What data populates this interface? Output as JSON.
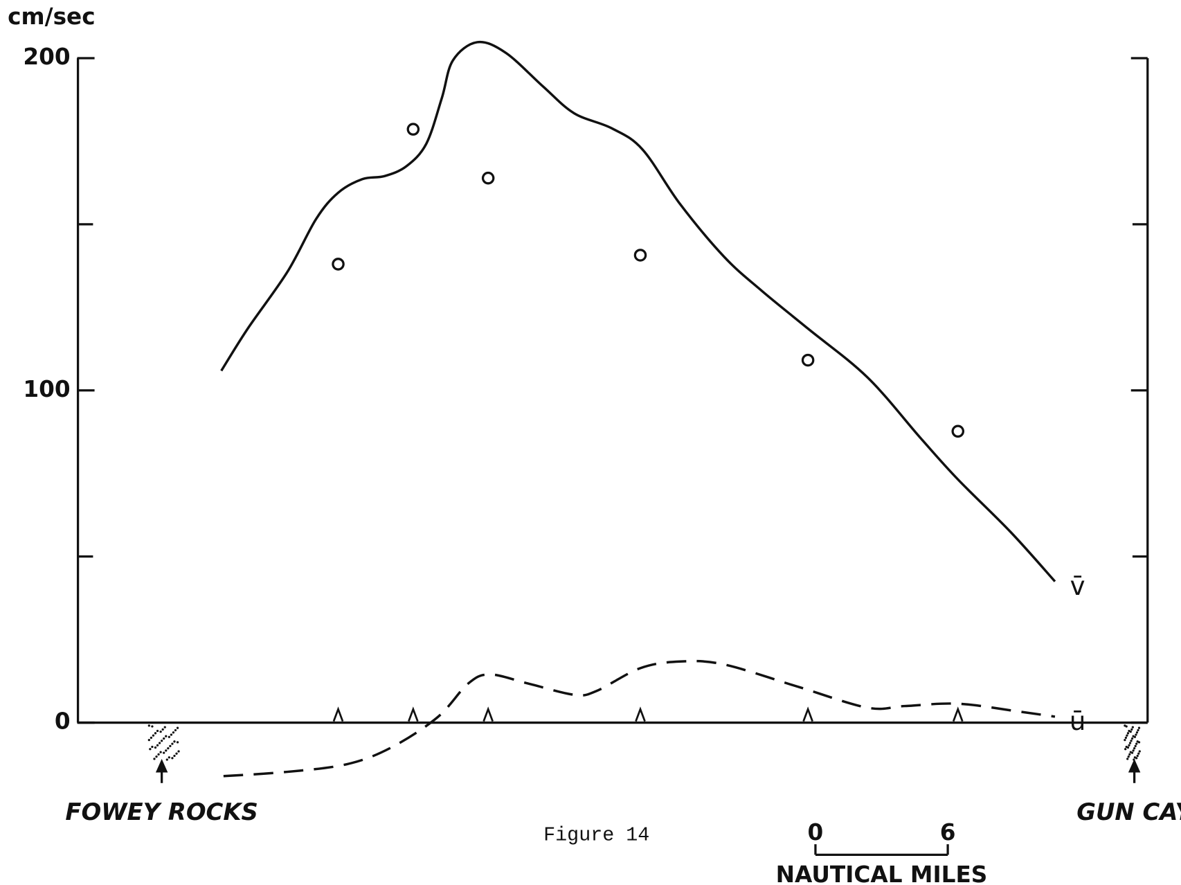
{
  "chart_data": {
    "type": "line",
    "y_label": "cm/sec",
    "caption": "Figure 14",
    "xlim": [
      -3.8,
      44.7
    ],
    "ylim": [
      0,
      200
    ],
    "yticks": [
      0,
      100,
      200
    ],
    "yticks_minor": [
      50,
      150
    ],
    "series": [
      {
        "name": "v̄",
        "style": "solid",
        "color": "#111111",
        "x": [
          2.7,
          3.9,
          5.7,
          7.0,
          8.0,
          9.1,
          10.1,
          11.1,
          12.0,
          12.7,
          13.2,
          14.3,
          15.6,
          17.3,
          18.7,
          20.4,
          21.8,
          23.5,
          25.5,
          27.2,
          29.3,
          32.0,
          34.4,
          36.1,
          38.5,
          40.5
        ],
        "values": [
          105.9,
          118.6,
          135.7,
          151.6,
          159.5,
          163.6,
          164.5,
          167.5,
          174.3,
          188,
          199.3,
          204.8,
          201.6,
          191.4,
          183.4,
          178.9,
          172.5,
          156.1,
          140.2,
          130,
          118.6,
          103.9,
          85.7,
          73.2,
          57.3,
          42.5
        ]
      },
      {
        "name": "ū",
        "style": "dashed",
        "color": "#111111",
        "x": [
          2.8,
          5.7,
          8.4,
          10.4,
          12.5,
          13.9,
          14.9,
          16.6,
          18.7,
          19.7,
          21.7,
          23.5,
          25.5,
          28.9,
          32.0,
          33.7,
          36.1,
          38.8,
          40.5
        ],
        "values": [
          -16.1,
          -14.8,
          -12.5,
          -7.5,
          1.6,
          11.8,
          14.5,
          11.8,
          8.4,
          9.5,
          16.4,
          18.4,
          17.5,
          10.7,
          4.5,
          5.0,
          5.7,
          3.4,
          1.8
        ]
      }
    ],
    "observations": [
      {
        "marker": "circle",
        "x": [
          8.0,
          11.4,
          14.8,
          21.7,
          29.3,
          36.1
        ],
        "values": [
          138,
          178.6,
          163.9,
          140.7,
          109.1,
          87.7
        ]
      },
      {
        "marker": "triangle",
        "x": [
          8.0,
          11.4,
          14.8,
          21.7,
          29.3,
          36.1
        ],
        "values": [
          2,
          2,
          2,
          2,
          2,
          2
        ]
      }
    ],
    "locations": [
      {
        "name": "FOWEY ROCKS",
        "x": 0
      },
      {
        "name": "GUN CAY",
        "x": 44.1
      }
    ],
    "scale_bar": {
      "ticks": [
        0,
        6
      ],
      "label": "NAUTICAL MILES"
    }
  }
}
